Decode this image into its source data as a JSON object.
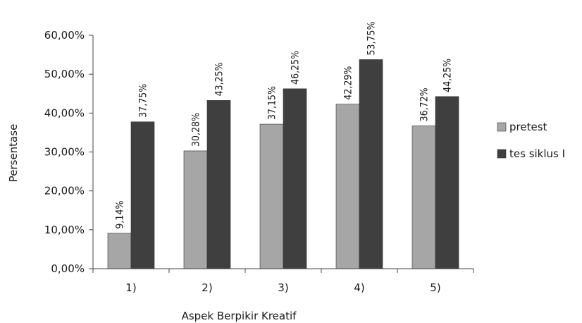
{
  "chart_data": {
    "type": "bar",
    "title": "",
    "xlabel": "Aspek Berpikir Kreatif",
    "ylabel": "Persentase",
    "categories": [
      "1)",
      "2)",
      "3)",
      "4)",
      "5)"
    ],
    "ylim": [
      0,
      60
    ],
    "yticks": [
      0,
      10,
      20,
      30,
      40,
      50,
      60
    ],
    "ytick_labels": [
      "0,00%",
      "10,00%",
      "20,00%",
      "30,00%",
      "40,00%",
      "50,00%",
      "60,00%"
    ],
    "grid": false,
    "legend_position": "right",
    "series": [
      {
        "name": "pretest",
        "color": "#a6a6a6",
        "values": [
          9.14,
          30.28,
          37.15,
          42.29,
          36.72
        ],
        "labels": [
          "9,14%",
          "30,28%",
          "37,15%",
          "42,29%",
          "36,72%"
        ]
      },
      {
        "name": "tes siklus I",
        "color": "#3f3f3f",
        "values": [
          37.75,
          43.25,
          46.25,
          53.75,
          44.25
        ],
        "labels": [
          "37,75%",
          "43,25%",
          "46,25%",
          "53,75%",
          "44,25%"
        ]
      }
    ]
  }
}
